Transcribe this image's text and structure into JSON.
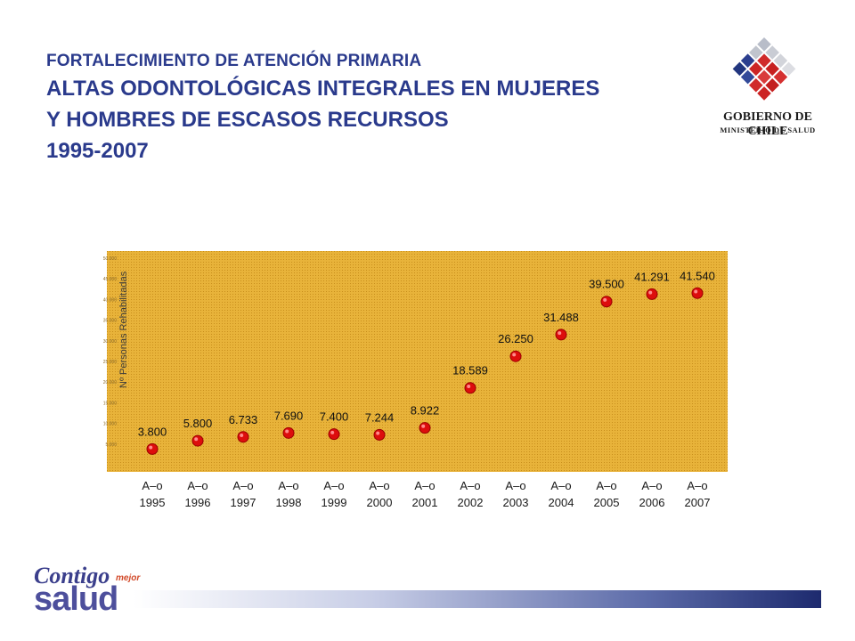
{
  "header": {
    "subtitle": "FORTALECIMIENTO DE ATENCIÓN PRIMARIA",
    "title_line1": "ALTAS ODONTOLÓGICAS INTEGRALES EN MUJERES",
    "title_line2": "Y HOMBRES DE ESCASOS RECURSOS",
    "title_line3": "1995-2007"
  },
  "logo": {
    "line1": "GOBIERNO DE CHILE",
    "line2": "MINISTERIO DE SALUD"
  },
  "footer": {
    "line1": "Contigo",
    "mejor": "mejor",
    "line2": "salud"
  },
  "colors": {
    "title": "#2a3a8c",
    "plot_background": "#e8b33a",
    "marker": "#dd0d0d"
  },
  "chart_data": {
    "type": "scatter",
    "title": "",
    "ylabel": "Nº Personas Rehabilitadas",
    "xlabel": "",
    "category_top": "A–o",
    "categories": [
      "1995",
      "1996",
      "1997",
      "1998",
      "1999",
      "2000",
      "2001",
      "2002",
      "2003",
      "2004",
      "2005",
      "2006",
      "2007"
    ],
    "values": [
      3800,
      5800,
      6733,
      7690,
      7400,
      7244,
      8922,
      18589,
      26250,
      31488,
      39500,
      41291,
      41540
    ],
    "value_labels": [
      "3.800",
      "5.800",
      "6.733",
      "7.690",
      "7.400",
      "7.244",
      "8.922",
      "18.589",
      "26.250",
      "31.488",
      "39.500",
      "41.291",
      "41.540"
    ],
    "ylim": [
      0,
      50000
    ],
    "yticks": [
      0,
      5000,
      10000,
      15000,
      20000,
      25000,
      30000,
      35000,
      40000,
      45000,
      50000
    ],
    "ytick_labels": [
      "",
      "5.000",
      "10.000",
      "15.000",
      "20.000",
      "25.000",
      "30.000",
      "35.000",
      "40.000",
      "45.000",
      "50.000"
    ],
    "grid": false,
    "legend": "none"
  }
}
